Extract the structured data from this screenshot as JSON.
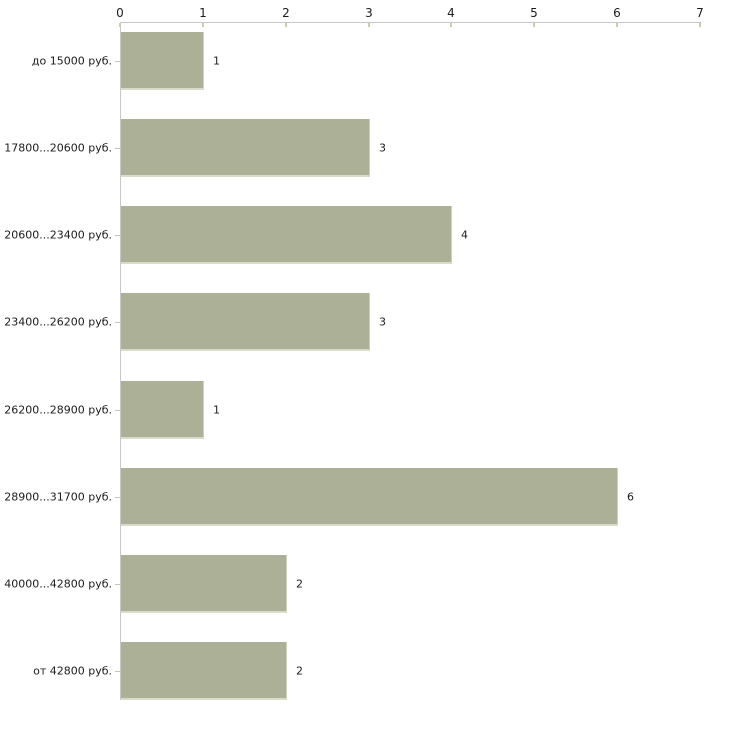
{
  "chart_data": {
    "type": "bar",
    "orientation": "horizontal",
    "title": "",
    "xlabel": "",
    "ylabel": "",
    "categories": [
      "до 15000 руб.",
      "17800...20600 руб.",
      "20600...23400 руб.",
      "23400...26200 руб.",
      "26200...28900 руб.",
      "28900...31700 руб.",
      "40000...42800 руб.",
      "от 42800 руб."
    ],
    "values": [
      1,
      3,
      4,
      3,
      1,
      6,
      2,
      2
    ],
    "value_labels": [
      "1",
      "3",
      "4",
      "3",
      "1",
      "6",
      "2",
      "2"
    ],
    "x_ticks": [
      "0",
      "1",
      "2",
      "3",
      "4",
      "5",
      "6",
      "7"
    ],
    "xlim": [
      0,
      7
    ],
    "axis_position": "top",
    "grid": false,
    "legend_position": "none",
    "colors": {
      "bar_fill": "#abb096",
      "bar_edge_highlight": "#d9dcc8",
      "axis_line": "#c7c7c7",
      "tick_mark": "#cccdab",
      "text": "#1c1c1c",
      "background": "#ffffff"
    }
  }
}
